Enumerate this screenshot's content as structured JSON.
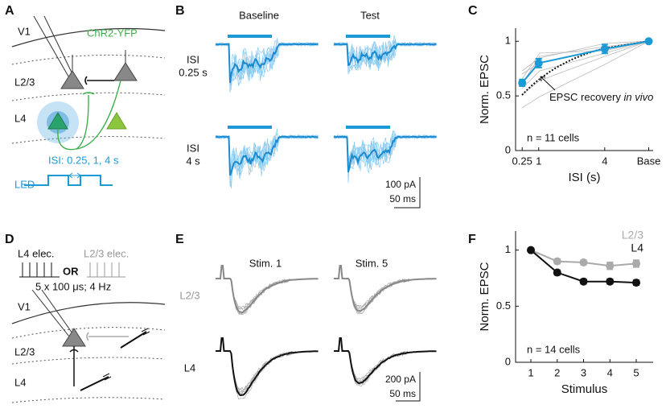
{
  "panel_labels": [
    "A",
    "B",
    "C",
    "D",
    "E",
    "F"
  ],
  "panel_a": {
    "region": "V1",
    "opsin": "ChR2-YFP",
    "layers": [
      "L2/3",
      "L4"
    ],
    "isi": "ISI: 0.25, 1, 4 s",
    "led": "LED"
  },
  "panel_b": {
    "columns": [
      "Baseline",
      "Test"
    ],
    "rows": [
      [
        "ISI",
        "0.25 s"
      ],
      [
        "ISI",
        "4 s"
      ]
    ],
    "scale": [
      "100 pA",
      "50 ms"
    ]
  },
  "panel_d": {
    "electrodes": [
      "L4 elec.",
      "L2/3 elec."
    ],
    "or": "OR",
    "protocol": "5 x 100 μs; 4 Hz",
    "region": "V1",
    "layers": [
      "L2/3",
      "L4"
    ]
  },
  "panel_e": {
    "columns": [
      "Stim. 1",
      "Stim. 5"
    ],
    "rows": [
      "L2/3",
      "L4"
    ],
    "scale": [
      "200 pA",
      "50 ms"
    ]
  },
  "chart_data": [
    {
      "type": "line",
      "ylabel": "Norm. EPSC",
      "xlabel": "ISI (s)",
      "x": [
        0.25,
        1,
        4,
        6
      ],
      "series": [
        {
          "color": "#1b9ad6",
          "values": [
            0.62,
            0.8,
            0.93,
            1.0
          ],
          "errors": [
            0.03,
            0.04,
            0.04,
            0
          ]
        }
      ],
      "xlim": [
        -0.05,
        6.2
      ],
      "xticks": [
        0.25,
        1,
        4,
        {
          "value": 6,
          "label": "Base"
        }
      ],
      "ylim": [
        0,
        1.12
      ],
      "yticks": [
        0,
        0.5,
        1
      ],
      "annotation": [
        "EPSC recovery ",
        "in vivo"
      ],
      "note": "n = 11 cells"
    },
    {
      "type": "line",
      "ylabel": "Norm. EPSC",
      "xlabel": "Stimulus",
      "x": [
        1,
        2,
        3,
        4,
        5
      ],
      "series": [
        {
          "name": "L2/3",
          "color": "#aaaaaa",
          "values": [
            1.0,
            0.9,
            0.89,
            0.86,
            0.88
          ],
          "errors": [
            0,
            0.02,
            0.02,
            0.03,
            0.03
          ]
        },
        {
          "name": "L4",
          "color": "#111111",
          "values": [
            1.0,
            0.8,
            0.72,
            0.72,
            0.71
          ],
          "errors": [
            0,
            0.02,
            0.02,
            0.02,
            0.02
          ]
        }
      ],
      "xlim": [
        0.42,
        5.64
      ],
      "xticks": [
        1,
        2,
        3,
        4,
        5
      ],
      "ylim": [
        0,
        1.17
      ],
      "yticks": [
        0,
        0.5,
        1
      ],
      "legend": "upper right",
      "note": "n = 14 cells"
    }
  ]
}
